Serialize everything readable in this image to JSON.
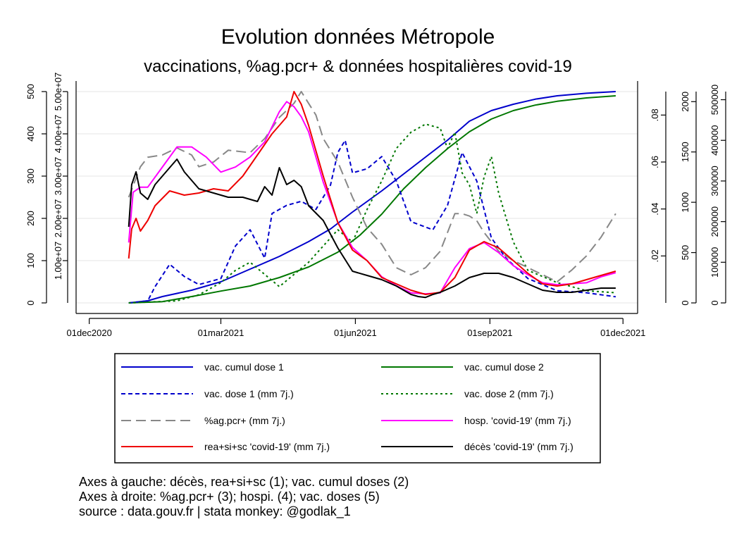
{
  "chart_data": {
    "type": "line",
    "title": "Evolution données Métropole",
    "subtitle": "vaccinations, %ag.pcr+ & données hospitalières covid-19",
    "x_ticks": [
      "01dec2020",
      "01mar2021",
      "01jun2021",
      "01sep2021",
      "01dec2021"
    ],
    "x_ticks_days": [
      0,
      90,
      182,
      274,
      365
    ],
    "xlim_days": [
      -9,
      375
    ],
    "x_note": "x values are days since 01dec2020",
    "axes": {
      "ax1": {
        "range": [
          0,
          500
        ],
        "ticks": [
          "0",
          "100",
          "200",
          "300",
          "400",
          "500"
        ],
        "tick_values": [
          0,
          100,
          200,
          300,
          400,
          500
        ]
      },
      "ax2": {
        "range": [
          0,
          50000000
        ],
        "ticks": [
          "1.00e+07",
          "2.00e+07",
          "3.00e+07",
          "4.00e+07",
          "5.00e+07"
        ],
        "tick_values": [
          10000000,
          20000000,
          30000000,
          40000000,
          50000000
        ]
      },
      "ax3": {
        "range": [
          0,
          0.09
        ],
        "ticks": [
          ".02",
          ".04",
          ".06",
          ".08"
        ],
        "tick_values": [
          0.02,
          0.04,
          0.06,
          0.08
        ]
      },
      "ax4": {
        "range": [
          0,
          2100
        ],
        "ticks": [
          "0",
          "500",
          "1000",
          "1500",
          "2000"
        ],
        "tick_values": [
          0,
          500,
          1000,
          1500,
          2000
        ]
      },
      "ax5": {
        "range": [
          0,
          520000
        ],
        "ticks": [
          "0",
          "100000",
          "200000",
          "300000",
          "400000",
          "500000"
        ],
        "tick_values": [
          0,
          100000,
          200000,
          300000,
          400000,
          500000
        ]
      }
    },
    "series": [
      {
        "name": "vac. cumul dose 1",
        "axis": "ax2",
        "color": "#0000cc",
        "dash": "solid",
        "x": [
          27,
          40,
          50,
          70,
          90,
          110,
          130,
          150,
          165,
          180,
          200,
          215,
          230,
          245,
          260,
          275,
          290,
          305,
          320,
          340,
          360
        ],
        "y": [
          0,
          500000,
          1500000,
          3000000,
          5000000,
          8000000,
          11000000,
          14500000,
          17500000,
          21500000,
          26500000,
          30500000,
          34500000,
          38500000,
          43000000,
          45500000,
          47000000,
          48200000,
          49000000,
          49600000,
          50000000
        ]
      },
      {
        "name": "vac. cumul dose 2",
        "axis": "ax2",
        "color": "#007700",
        "dash": "solid",
        "x": [
          27,
          50,
          70,
          90,
          110,
          130,
          150,
          170,
          185,
          200,
          215,
          230,
          245,
          260,
          275,
          290,
          305,
          320,
          340,
          360
        ],
        "y": [
          0,
          300000,
          1500000,
          2800000,
          4000000,
          6000000,
          8500000,
          12000000,
          16000000,
          21000000,
          27000000,
          32000000,
          36500000,
          40500000,
          43500000,
          45500000,
          46800000,
          47700000,
          48500000,
          49000000
        ]
      },
      {
        "name": "vac. dose 1 (mm 7j.)",
        "axis": "ax5",
        "color": "#0000cc",
        "dash": "dash",
        "x": [
          27,
          40,
          45,
          55,
          65,
          75,
          90,
          100,
          110,
          120,
          125,
          135,
          145,
          155,
          165,
          170,
          175,
          180,
          190,
          200,
          210,
          220,
          235,
          245,
          255,
          265,
          275,
          285,
          300,
          320,
          340,
          360
        ],
        "y": [
          0,
          5000,
          40000,
          95000,
          65000,
          45000,
          60000,
          140000,
          180000,
          110000,
          220000,
          240000,
          250000,
          230000,
          290000,
          370000,
          400000,
          320000,
          330000,
          360000,
          300000,
          200000,
          180000,
          240000,
          370000,
          300000,
          160000,
          110000,
          60000,
          30000,
          25000,
          15000
        ]
      },
      {
        "name": "vac. dose 2 (mm 7j.)",
        "axis": "ax5",
        "color": "#007700",
        "dash": "dot",
        "x": [
          27,
          60,
          75,
          90,
          100,
          110,
          130,
          150,
          160,
          170,
          180,
          190,
          200,
          210,
          220,
          230,
          240,
          245,
          250,
          255,
          260,
          265,
          270,
          275,
          280,
          290,
          300,
          320,
          340,
          360
        ],
        "y": [
          0,
          5000,
          20000,
          50000,
          80000,
          100000,
          40000,
          100000,
          140000,
          180000,
          150000,
          230000,
          300000,
          380000,
          420000,
          440000,
          430000,
          380000,
          420000,
          320000,
          290000,
          220000,
          310000,
          360000,
          270000,
          150000,
          80000,
          50000,
          30000,
          25000
        ]
      },
      {
        "name": "%ag.pcr+ (mm 7j.)",
        "axis": "ax3",
        "color": "#888888",
        "dash": "longdash",
        "x": [
          27,
          35,
          40,
          50,
          60,
          70,
          75,
          85,
          95,
          110,
          120,
          130,
          140,
          145,
          150,
          155,
          160,
          170,
          180,
          190,
          200,
          210,
          220,
          230,
          240,
          245,
          250,
          255,
          260,
          265,
          270,
          275,
          280,
          290,
          300,
          310,
          320,
          330,
          340,
          350,
          360
        ],
        "y": [
          0.045,
          0.058,
          0.062,
          0.063,
          0.066,
          0.063,
          0.058,
          0.06,
          0.065,
          0.064,
          0.07,
          0.079,
          0.085,
          0.09,
          0.085,
          0.08,
          0.07,
          0.06,
          0.045,
          0.032,
          0.025,
          0.015,
          0.012,
          0.015,
          0.022,
          0.03,
          0.038,
          0.038,
          0.037,
          0.035,
          0.03,
          0.026,
          0.022,
          0.018,
          0.015,
          0.012,
          0.009,
          0.014,
          0.02,
          0.028,
          0.038
        ]
      },
      {
        "name": "hosp. 'covid-19' (mm 7j.)",
        "axis": "ax4",
        "color": "#ff00ff",
        "dash": "solid",
        "x": [
          27,
          30,
          35,
          40,
          50,
          60,
          70,
          80,
          90,
          100,
          110,
          120,
          130,
          135,
          140,
          145,
          150,
          160,
          170,
          180,
          190,
          200,
          210,
          220,
          230,
          240,
          250,
          260,
          270,
          280,
          290,
          300,
          310,
          320,
          330,
          340,
          350,
          360
        ],
        "y": [
          600,
          1100,
          1150,
          1150,
          1350,
          1550,
          1550,
          1450,
          1300,
          1350,
          1450,
          1600,
          1900,
          2000,
          1950,
          1850,
          1700,
          1200,
          800,
          550,
          420,
          260,
          170,
          100,
          90,
          100,
          350,
          540,
          600,
          500,
          370,
          280,
          200,
          180,
          190,
          200,
          260,
          300
        ]
      },
      {
        "name": "rea+si+sc 'covid-19' (mm 7j.)",
        "axis": "ax1",
        "color": "#ee0000",
        "dash": "solid",
        "x": [
          27,
          29,
          32,
          35,
          40,
          45,
          55,
          65,
          75,
          85,
          95,
          105,
          115,
          125,
          135,
          140,
          145,
          150,
          160,
          170,
          180,
          190,
          200,
          210,
          220,
          230,
          240,
          250,
          260,
          270,
          280,
          290,
          300,
          310,
          320,
          330,
          340,
          350,
          360
        ],
        "y": [
          105,
          175,
          200,
          170,
          195,
          230,
          265,
          255,
          260,
          270,
          265,
          300,
          350,
          400,
          440,
          500,
          470,
          420,
          300,
          190,
          125,
          100,
          60,
          45,
          30,
          20,
          25,
          60,
          125,
          145,
          130,
          100,
          70,
          45,
          40,
          45,
          55,
          65,
          75
        ]
      },
      {
        "name": "décès 'covid-19' (mm 7j.)",
        "axis": "ax1",
        "color": "#000000",
        "dash": "solid",
        "x": [
          27,
          29,
          32,
          35,
          40,
          45,
          55,
          60,
          65,
          75,
          85,
          95,
          105,
          115,
          120,
          125,
          130,
          135,
          140,
          145,
          150,
          160,
          170,
          180,
          190,
          200,
          210,
          215,
          220,
          225,
          230,
          235,
          240,
          250,
          260,
          270,
          280,
          290,
          300,
          310,
          320,
          330,
          340,
          350,
          360
        ],
        "y": [
          180,
          280,
          310,
          260,
          245,
          280,
          320,
          340,
          310,
          270,
          260,
          250,
          250,
          240,
          275,
          255,
          320,
          280,
          290,
          275,
          230,
          195,
          130,
          75,
          65,
          55,
          40,
          30,
          20,
          15,
          13,
          20,
          25,
          40,
          60,
          70,
          70,
          60,
          45,
          30,
          25,
          25,
          30,
          35,
          35
        ]
      }
    ],
    "legend_placement": "bottom",
    "legend_items": [
      "vac. cumul dose 1",
      "vac. cumul dose 2",
      "vac. dose 1 (mm 7j.)",
      "vac. dose 2 (mm 7j.)",
      "%ag.pcr+ (mm 7j.)",
      "hosp. 'covid-19' (mm 7j.)",
      "rea+si+sc 'covid-19' (mm 7j.)",
      "décès 'covid-19' (mm 7j.)"
    ],
    "notes": [
      "Axes à gauche: décès, rea+si+sc (1); vac. cumul doses (2)",
      "Axes à droite: %ag.pcr+ (3); hospi. (4); vac. doses (5)",
      "source : data.gouv.fr | stata monkey: @godlak_1"
    ]
  }
}
